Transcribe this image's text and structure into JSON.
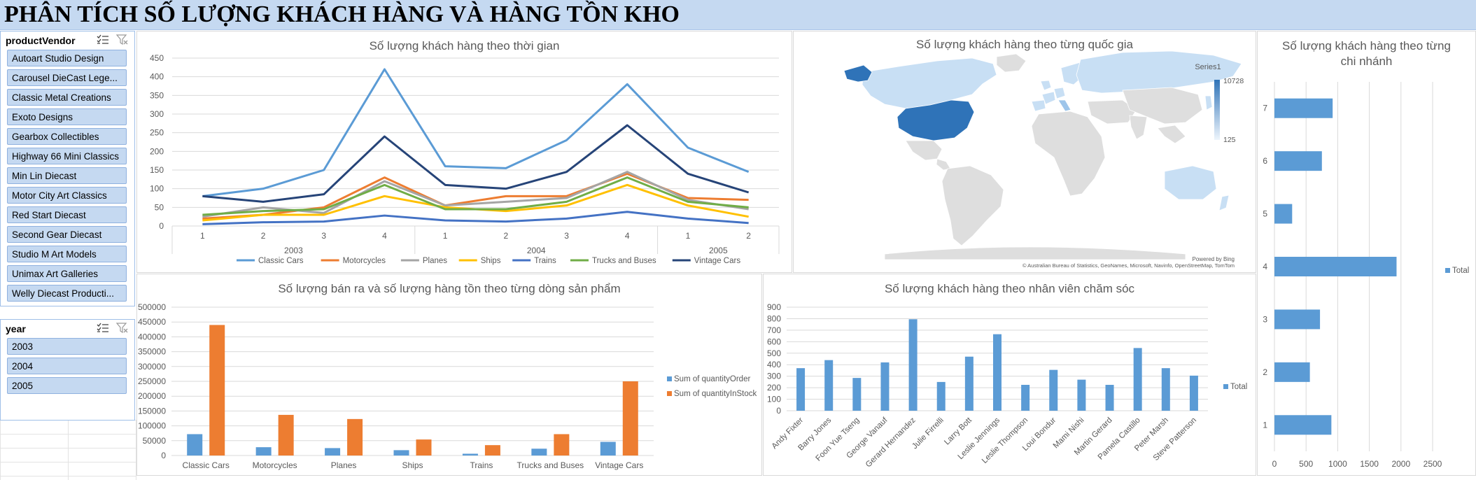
{
  "page": {
    "title": "PHÂN TÍCH SỐ LƯỢNG KHÁCH HÀNG VÀ HÀNG TỒN KHO"
  },
  "slicers": {
    "vendor": {
      "title": "productVendor",
      "items": [
        "Autoart Studio Design",
        "Carousel DieCast Lege...",
        "Classic Metal Creations",
        "Exoto Designs",
        "Gearbox Collectibles",
        "Highway 66 Mini Classics",
        "Min Lin Diecast",
        "Motor City Art Classics",
        "Red Start Diecast",
        "Second Gear Diecast",
        "Studio M Art Models",
        "Unimax Art Galleries",
        "Welly Diecast Producti..."
      ]
    },
    "year": {
      "title": "year",
      "items": [
        "2003",
        "2004",
        "2005"
      ]
    }
  },
  "chart_data": [
    {
      "id": "time",
      "type": "line",
      "title": "Số lượng khách hàng theo thời gian",
      "x": [
        "1",
        "2",
        "3",
        "4",
        "1",
        "2",
        "3",
        "4",
        "1",
        "2"
      ],
      "groups": [
        {
          "label": "2003",
          "span": [
            0,
            3
          ]
        },
        {
          "label": "2004",
          "span": [
            4,
            7
          ]
        },
        {
          "label": "2005",
          "span": [
            8,
            9
          ]
        }
      ],
      "ylim": [
        0,
        450
      ],
      "yticks": [
        0,
        50,
        100,
        150,
        200,
        250,
        300,
        350,
        400,
        450
      ],
      "series": [
        {
          "name": "Classic Cars",
          "color": "#5b9bd5",
          "values": [
            80,
            100,
            150,
            420,
            160,
            155,
            230,
            380,
            210,
            145
          ]
        },
        {
          "name": "Motorcycles",
          "color": "#ed7d31",
          "values": [
            20,
            30,
            50,
            130,
            55,
            80,
            80,
            140,
            75,
            70
          ]
        },
        {
          "name": "Planes",
          "color": "#a5a5a5",
          "values": [
            25,
            50,
            35,
            120,
            55,
            65,
            75,
            145,
            70,
            45
          ]
        },
        {
          "name": "Ships",
          "color": "#ffc000",
          "values": [
            15,
            30,
            30,
            80,
            50,
            40,
            55,
            110,
            55,
            25
          ]
        },
        {
          "name": "Trains",
          "color": "#4472c4",
          "values": [
            5,
            10,
            12,
            28,
            15,
            12,
            20,
            38,
            20,
            8
          ]
        },
        {
          "name": "Trucks and Buses",
          "color": "#70ad47",
          "values": [
            30,
            40,
            45,
            110,
            45,
            45,
            65,
            130,
            65,
            50
          ]
        },
        {
          "name": "Vintage Cars",
          "color": "#264478",
          "values": [
            80,
            65,
            85,
            240,
            110,
            100,
            145,
            270,
            140,
            90
          ]
        }
      ]
    },
    {
      "id": "map",
      "type": "map",
      "title": "Số lượng khách hàng theo từng quốc gia",
      "legend_title": "Series1",
      "max": 10728,
      "min": 125,
      "credit": "© Australian Bureau of Statistics, GeoNames, Microsoft, Navinfo, OpenStreetMap, TomTom",
      "powered": "Powered by Bing"
    },
    {
      "id": "branch",
      "type": "bar",
      "orientation": "horizontal",
      "title": "Số lượng khách hàng theo từng chi nhánh",
      "title_lines": [
        "Số lượng khách hàng theo từng",
        "chi nhánh"
      ],
      "categories": [
        "1",
        "2",
        "3",
        "4",
        "5",
        "6",
        "7"
      ],
      "series": [
        {
          "name": "Total",
          "color": "#5b9bd5",
          "values": [
            900,
            560,
            720,
            1930,
            280,
            750,
            920
          ]
        }
      ],
      "xlim": [
        0,
        2500
      ],
      "xticks": [
        0,
        500,
        1000,
        1500,
        2000,
        2500
      ]
    },
    {
      "id": "stock",
      "type": "bar",
      "title": "Số lượng bán ra và số lượng hàng tồn theo từng dòng sản phẩm",
      "categories": [
        "Classic Cars",
        "Motorcycles",
        "Planes",
        "Ships",
        "Trains",
        "Trucks and Buses",
        "Vintage Cars"
      ],
      "series": [
        {
          "name": "Sum of quantityOrder",
          "color": "#5b9bd5",
          "values": [
            72000,
            28000,
            25000,
            18000,
            6000,
            23000,
            46000
          ]
        },
        {
          "name": "Sum of quantityInStock",
          "color": "#ed7d31",
          "values": [
            440000,
            137000,
            123000,
            54000,
            35000,
            72000,
            250000
          ]
        }
      ],
      "ylim": [
        0,
        500000
      ],
      "yticks": [
        0,
        50000,
        100000,
        150000,
        200000,
        250000,
        300000,
        350000,
        400000,
        450000,
        500000
      ]
    },
    {
      "id": "staff",
      "type": "bar",
      "title": "Số lượng khách hàng theo nhân viên chăm sóc",
      "categories": [
        "Andy Fixter",
        "Barry Jones",
        "Foon Yue Tseng",
        "George Vanauf",
        "Gerard Hernandez",
        "Julie Firrelli",
        "Larry Bott",
        "Leslie Jennings",
        "Leslie Thompson",
        "Loui Bondur",
        "Mami Nishi",
        "Martin Gerard",
        "Pamela Castillo",
        "Peter Marsh",
        "Steve Patterson"
      ],
      "series": [
        {
          "name": "Total",
          "color": "#5b9bd5",
          "values": [
            370,
            440,
            285,
            420,
            795,
            250,
            470,
            665,
            225,
            355,
            270,
            225,
            545,
            370,
            305
          ]
        }
      ],
      "ylim": [
        0,
        900
      ],
      "yticks": [
        0,
        100,
        200,
        300,
        400,
        500,
        600,
        700,
        800,
        900
      ]
    }
  ]
}
